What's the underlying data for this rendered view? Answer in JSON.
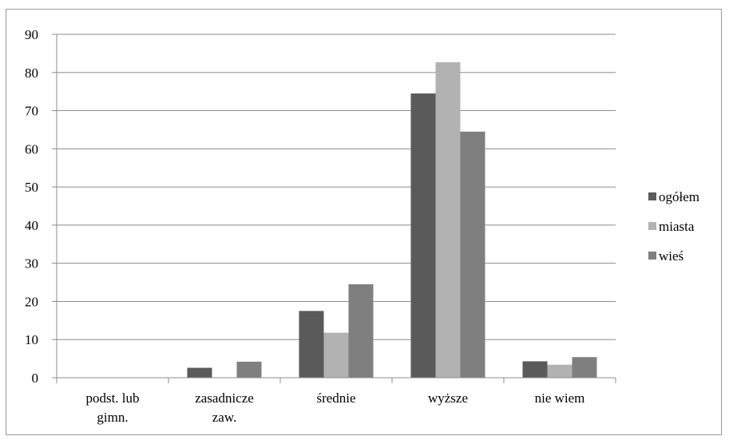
{
  "chart_data": {
    "type": "bar",
    "categories": [
      "podst. lub gimn.",
      "zasadnicze zaw.",
      "średnie",
      "wyższe",
      "nie wiem"
    ],
    "category_lines": [
      [
        "podst. lub",
        "gimn."
      ],
      [
        "zasadnicze",
        "zaw."
      ],
      [
        "średnie"
      ],
      [
        "wyższe"
      ],
      [
        "nie wiem"
      ]
    ],
    "series": [
      {
        "name": "ogółem",
        "color": "#5a5a5a",
        "values": [
          0,
          2.6,
          17.5,
          74.5,
          4.3
        ]
      },
      {
        "name": "miasta",
        "color": "#b2b2b2",
        "values": [
          0,
          0,
          11.8,
          82.7,
          3.4
        ]
      },
      {
        "name": "wieś",
        "color": "#7f7f7f",
        "values": [
          0,
          4.2,
          24.5,
          64.5,
          5.4
        ]
      }
    ],
    "title": "",
    "xlabel": "",
    "ylabel": "",
    "ylim": [
      0,
      90
    ],
    "yticks": [
      "0",
      "10",
      "20",
      "30",
      "40",
      "50",
      "60",
      "70",
      "80",
      "90"
    ],
    "grid": true,
    "legend_position": "right"
  }
}
